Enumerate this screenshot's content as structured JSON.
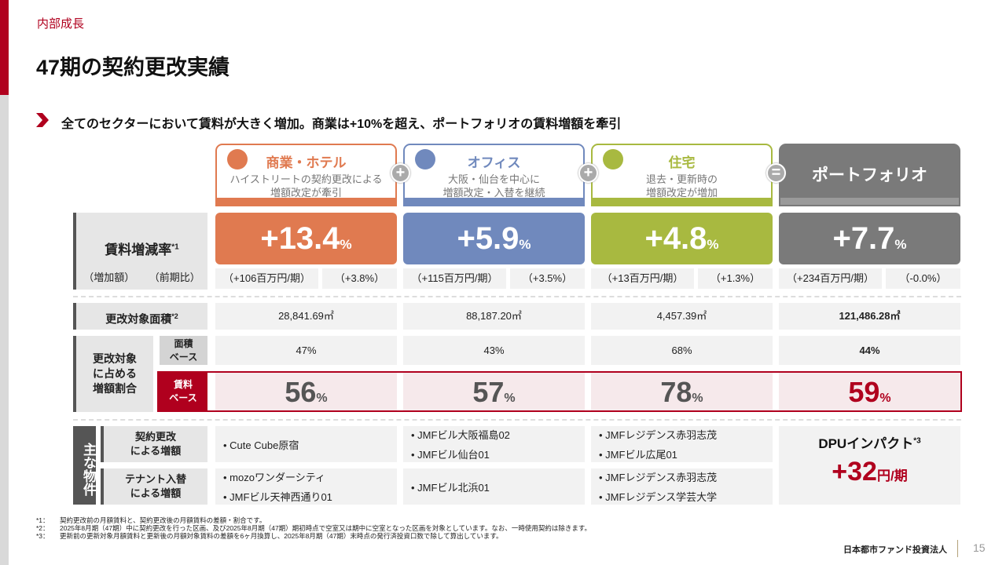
{
  "section": "内部成長",
  "title": "47期の契約更改実績",
  "lead": "全てのセクターにおいて賃料が大きく増加。商業は+10%を超え、ポートフォリオの賃料増額を牽引",
  "colors": {
    "commercial": "#E07A50",
    "office": "#7089BD",
    "residential": "#A8B940",
    "portfolio": "#7A7A7A",
    "accent": "#B0001E"
  },
  "sectors": [
    {
      "name": "商業・ホテル",
      "desc1": "ハイストリートの契約更改による",
      "desc2": "増額改定が牽引",
      "icon": "shopping-bag-icon",
      "rate": "+13.4",
      "amount": "（+106百万円/期）",
      "yoy": "（+3.8%）",
      "area": "28,841.69㎡",
      "area_base": "47%",
      "rent_base": "56",
      "props_renewal": [
        "Cute Cube原宿"
      ],
      "props_replace": [
        "mozoワンダーシティ",
        "JMFビル天神西通り01"
      ]
    },
    {
      "name": "オフィス",
      "desc1": "大阪・仙台を中心に",
      "desc2": "増額改定・入替を継続",
      "icon": "building-icon",
      "rate": "+5.9",
      "amount": "（+115百万円/期）",
      "yoy": "（+3.5%）",
      "area": "88,187.20㎡",
      "area_base": "43%",
      "rent_base": "57",
      "props_renewal": [
        "JMFビル大阪福島02",
        "JMFビル仙台01"
      ],
      "props_replace": [
        "JMFビル北浜01"
      ]
    },
    {
      "name": "住宅",
      "desc1": "退去・更新時の",
      "desc2": "増額改定が増加",
      "icon": "tree-icon",
      "rate": "+4.8",
      "amount": "（+13百万円/期）",
      "yoy": "（+1.3%）",
      "area": "4,457.39㎡",
      "area_base": "68%",
      "rent_base": "78",
      "props_renewal": [
        "JMFレジデンス赤羽志茂",
        "JMFビル広尾01"
      ],
      "props_replace": [
        "JMFレジデンス赤羽志茂",
        "JMFレジデンス学芸大学"
      ]
    }
  ],
  "portfolio": {
    "name": "ポートフォリオ",
    "rate": "+7.7",
    "amount": "（+234百万円/期）",
    "yoy": "（-0.0%）",
    "area": "121,486.28㎡",
    "area_base": "44%",
    "rent_base": "59",
    "dpu_label": "DPUインパクト",
    "dpu_note": "*3",
    "dpu_value": "+32",
    "dpu_unit": "円/期"
  },
  "percent": "%",
  "operators": {
    "plus": "+",
    "equals": "="
  },
  "labels": {
    "rate": "賃料増減率",
    "rate_note": "*1",
    "amount": "（増加額）",
    "yoy": "（前期比）",
    "area": "更改対象面積",
    "area_note": "*2",
    "share1": "更改対象",
    "share2": "に占める",
    "share3": "増額割合",
    "area_base1": "面積",
    "area_base2": "ベース",
    "rent_base1": "賃料",
    "rent_base2": "ベース",
    "main": "主な物件",
    "renewal1": "契約更改",
    "renewal2": "による増額",
    "replace1": "テナント入替",
    "replace2": "による増額"
  },
  "footnotes": [
    {
      "mark": "*1：",
      "text": "契約更改前の月額賃料と、契約更改後の月額賃料の差額・割合です。"
    },
    {
      "mark": "*2：",
      "text": "2025年8月期（47期）中に契約更改を行った区画、及び2025年8月期（47期）期初時点で空室又は期中に空室となった区画を対象としています。なお、一時使用契約は除きます。"
    },
    {
      "mark": "*3：",
      "text": "更新前の更新対象月額賃料と更新後の月額対象賃料の差額を6ヶ月換算し、2025年8月期（47期）末時点の発行済投資口数で除して算出しています。"
    }
  ],
  "company": "日本都市ファンド投資法人",
  "page": "15"
}
